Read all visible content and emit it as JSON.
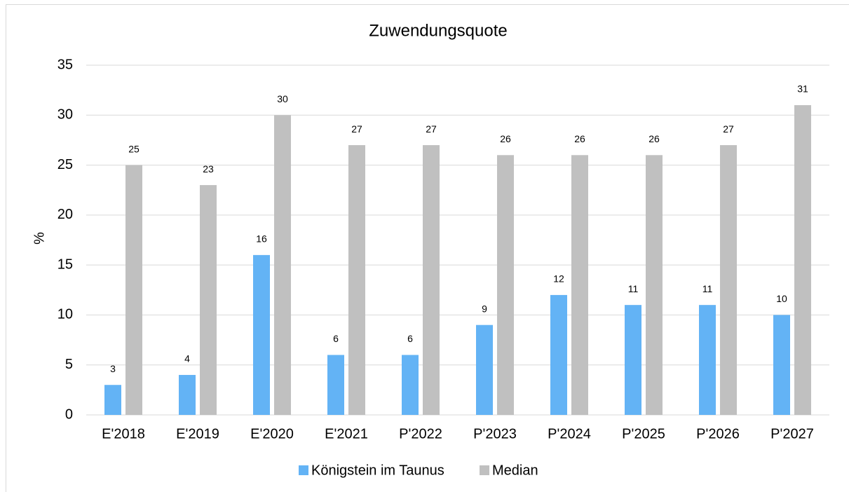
{
  "chart_data": {
    "type": "bar",
    "title": "Zuwendungsquote",
    "y_label": "%",
    "categories": [
      "E'2018",
      "E'2019",
      "E'2020",
      "E'2021",
      "P'2022",
      "P'2023",
      "P'2024",
      "P'2025",
      "P'2026",
      "P'2027"
    ],
    "series": [
      {
        "name": "Königstein im Taunus",
        "color": "#63b3f5",
        "values": [
          3,
          4,
          16,
          6,
          6,
          9,
          12,
          11,
          11,
          10
        ]
      },
      {
        "name": "Median",
        "color": "#c0c0c0",
        "values": [
          25,
          23,
          30,
          27,
          27,
          26,
          26,
          26,
          27,
          31
        ]
      }
    ],
    "ylim": [
      0,
      35
    ],
    "yticks": [
      0,
      5,
      10,
      15,
      20,
      25,
      30,
      35
    ],
    "grid": true,
    "legend": "bottom"
  }
}
